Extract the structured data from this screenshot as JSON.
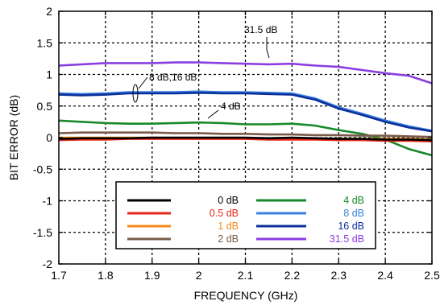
{
  "chart_data": {
    "type": "line",
    "title": "",
    "xlabel": "FREQUENCY (GHz)",
    "ylabel": "BIT ERROR (dB)",
    "xlim": [
      1.7,
      2.5
    ],
    "ylim": [
      -2,
      2
    ],
    "x_ticks": [
      "1.7",
      "1.8",
      "1.9",
      "2",
      "2.1",
      "2.2",
      "2.3",
      "2.4",
      "2.5"
    ],
    "y_ticks": [
      "2",
      "1.5",
      "1",
      "0.5",
      "0",
      "-0.5",
      "-1",
      "-1.5",
      "-2"
    ],
    "grid": true,
    "legend_placement": "bottom-center",
    "x": [
      1.7,
      1.75,
      1.8,
      1.85,
      1.9,
      1.95,
      2.0,
      2.05,
      2.1,
      2.15,
      2.2,
      2.25,
      2.3,
      2.35,
      2.4,
      2.45,
      2.5
    ],
    "series": [
      {
        "name": "0 dB",
        "color": "#000000",
        "values": [
          -0.02,
          -0.01,
          -0.01,
          -0.01,
          0.0,
          0.0,
          0.0,
          0.0,
          0.0,
          -0.01,
          0.0,
          -0.01,
          -0.02,
          -0.02,
          -0.03,
          -0.03,
          -0.04
        ]
      },
      {
        "name": "0.5 dB",
        "color": "#e8261a",
        "values": [
          -0.04,
          -0.03,
          -0.03,
          -0.02,
          -0.02,
          -0.02,
          -0.02,
          -0.02,
          -0.02,
          -0.03,
          -0.03,
          -0.03,
          -0.04,
          -0.04,
          -0.05,
          -0.05,
          -0.06
        ]
      },
      {
        "name": "1 dB",
        "color": "#f28a1b",
        "values": [
          0.0,
          0.0,
          0.0,
          0.0,
          0.0,
          -0.01,
          -0.01,
          -0.01,
          -0.01,
          -0.01,
          -0.01,
          -0.01,
          -0.02,
          -0.02,
          -0.02,
          -0.02,
          -0.03
        ]
      },
      {
        "name": "2 dB",
        "color": "#7a5a4a",
        "values": [
          0.07,
          0.08,
          0.08,
          0.08,
          0.08,
          0.07,
          0.07,
          0.06,
          0.06,
          0.05,
          0.05,
          0.04,
          0.04,
          0.03,
          0.03,
          0.02,
          0.01
        ]
      },
      {
        "name": "4 dB",
        "color": "#17892a",
        "values": [
          0.27,
          0.25,
          0.23,
          0.22,
          0.22,
          0.23,
          0.24,
          0.23,
          0.21,
          0.21,
          0.22,
          0.19,
          0.12,
          0.06,
          -0.03,
          -0.18,
          -0.28
        ]
      },
      {
        "name": "8 dB",
        "color": "#3a80e0",
        "values": [
          0.7,
          0.69,
          0.7,
          0.72,
          0.72,
          0.72,
          0.73,
          0.72,
          0.72,
          0.71,
          0.7,
          0.62,
          0.48,
          0.38,
          0.27,
          0.18,
          0.11
        ]
      },
      {
        "name": "16 dB",
        "color": "#0b2f9a",
        "values": [
          0.68,
          0.67,
          0.68,
          0.7,
          0.7,
          0.7,
          0.71,
          0.7,
          0.7,
          0.69,
          0.68,
          0.6,
          0.46,
          0.36,
          0.25,
          0.16,
          0.1
        ]
      },
      {
        "name": "31.5 dB",
        "color": "#8a3ee0",
        "values": [
          1.14,
          1.16,
          1.18,
          1.18,
          1.18,
          1.19,
          1.19,
          1.18,
          1.17,
          1.16,
          1.17,
          1.14,
          1.12,
          1.07,
          1.02,
          0.98,
          0.86
        ]
      }
    ],
    "annotations": [
      {
        "text": "31.5 dB",
        "x": 2.16,
        "y": 1.33
      },
      {
        "text": "8 dB,16 dB",
        "x": 1.92,
        "y": 0.87
      },
      {
        "text": "4 dB",
        "x": 2.03,
        "y": 0.4
      }
    ]
  }
}
